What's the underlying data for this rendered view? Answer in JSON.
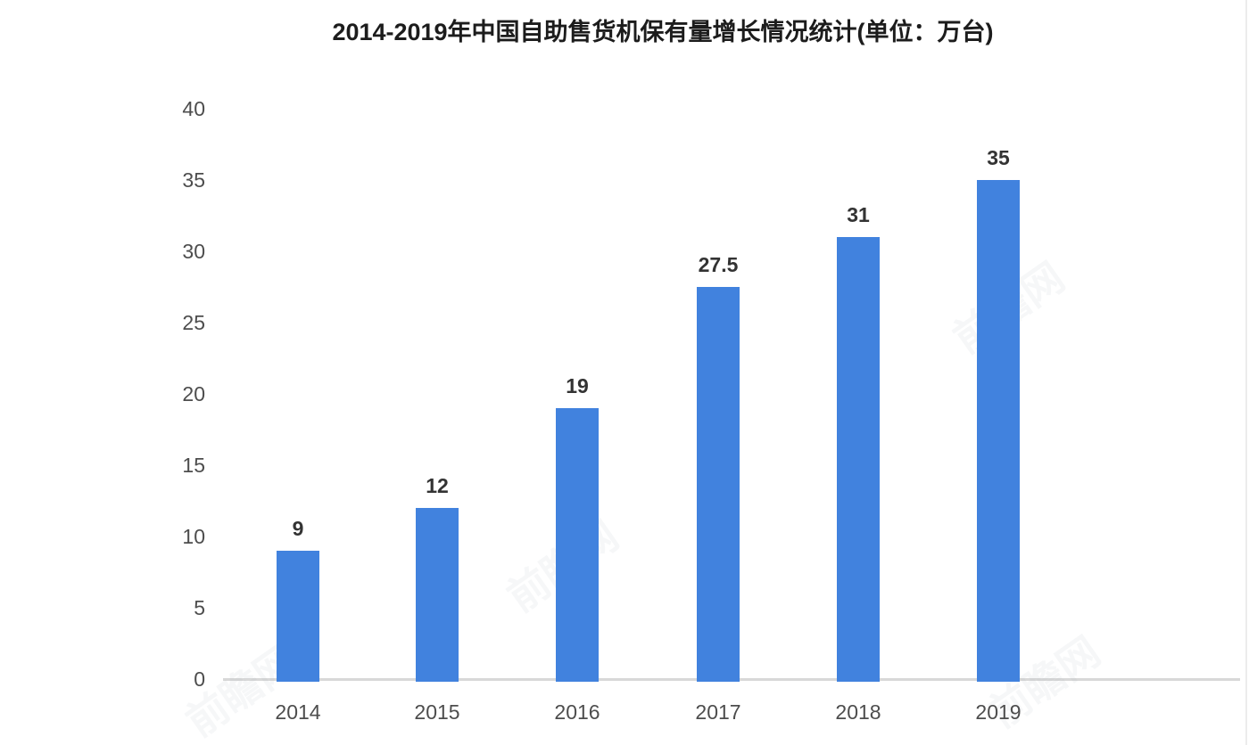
{
  "chart_data": {
    "type": "bar",
    "title": "2014-2019年中国自助售货机保有量增长情况统计(单位：万台)",
    "categories": [
      "2014",
      "2015",
      "2016",
      "2017",
      "2018",
      "2019"
    ],
    "values": [
      9,
      12,
      19,
      27.5,
      31,
      35
    ],
    "data_labels": [
      "9",
      "12",
      "19",
      "27.5",
      "31",
      "35"
    ],
    "xlabel": "",
    "ylabel": "",
    "ylim": [
      0,
      40
    ],
    "yticks": [
      0,
      5,
      10,
      15,
      20,
      25,
      30,
      35,
      40
    ],
    "grid": false,
    "legend": false,
    "colors": {
      "bar": "#4182DE",
      "axis_line": "#d8d8d8",
      "tick_label": "#4d4d4d",
      "data_label": "#333333",
      "title": "#1c1c1c"
    }
  },
  "watermark": {
    "text": "前瞻网"
  }
}
